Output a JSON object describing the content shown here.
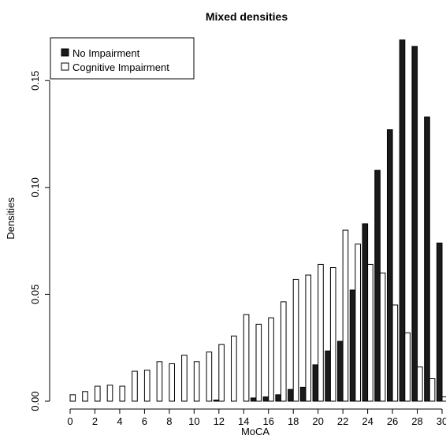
{
  "chart_data": {
    "type": "bar",
    "title": "Mixed densities",
    "xlabel": "MoCA",
    "ylabel": "Densities",
    "ylim": [
      0,
      0.17
    ],
    "xlim": [
      0,
      30
    ],
    "yticks": [
      0.0,
      0.05,
      0.1,
      0.15
    ],
    "ytick_labels": [
      "0.00",
      "0.05",
      "0.10",
      "0.15"
    ],
    "xticks": [
      0,
      2,
      4,
      6,
      8,
      10,
      12,
      14,
      16,
      18,
      20,
      22,
      24,
      26,
      28,
      30
    ],
    "xtick_labels": [
      "0",
      "2",
      "4",
      "6",
      "8",
      "10",
      "12",
      "14",
      "16",
      "18",
      "20",
      "22",
      "24",
      "26",
      "28",
      "30"
    ],
    "legend_position": "top-left",
    "x": [
      0,
      1,
      2,
      3,
      4,
      5,
      6,
      7,
      8,
      9,
      10,
      11,
      12,
      13,
      14,
      15,
      16,
      17,
      18,
      19,
      20,
      21,
      22,
      23,
      24,
      25,
      26,
      27,
      28,
      29,
      30
    ],
    "series": [
      {
        "name": "No Impairment",
        "color": "#1a1a1a",
        "values": [
          0,
          0,
          0,
          0,
          0,
          0,
          0,
          0,
          0,
          0,
          0,
          0,
          0.0005,
          0,
          0,
          0.0015,
          0.002,
          0.003,
          0.0055,
          0.0065,
          0.017,
          0.0235,
          0.028,
          0.052,
          0.083,
          0.108,
          0.127,
          0.169,
          0.166,
          0.133,
          0.074
        ]
      },
      {
        "name": "Cognitive Impairment",
        "color": "#ffffff",
        "values": [
          0.003,
          0.0045,
          0.007,
          0.0075,
          0.007,
          0.014,
          0.0145,
          0.0185,
          0.0175,
          0.0215,
          0.0185,
          0.023,
          0.0265,
          0.0305,
          0.0405,
          0.036,
          0.039,
          0.0465,
          0.057,
          0.059,
          0.064,
          0.0625,
          0.08,
          0.0735,
          0.064,
          0.06,
          0.045,
          0.032,
          0.016,
          0.0105,
          0.002
        ]
      }
    ]
  }
}
